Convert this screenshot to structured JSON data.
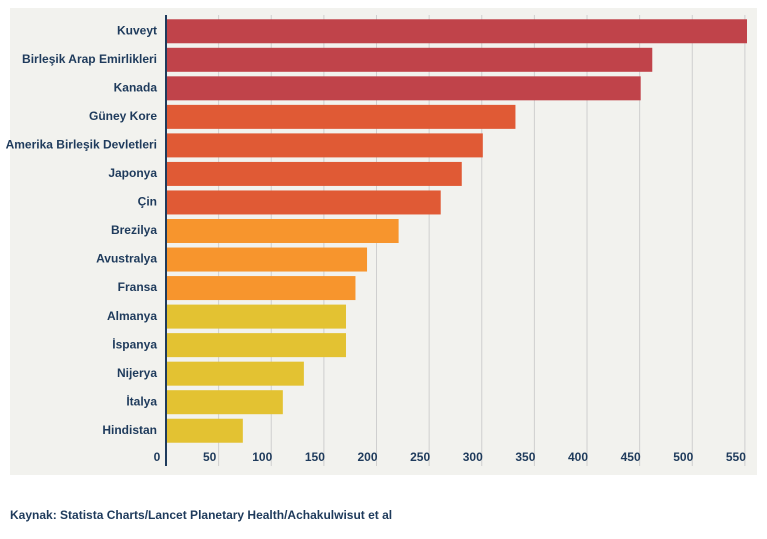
{
  "chart_data": {
    "type": "barh",
    "categories": [
      "Kuveyt",
      "Birleşik Arap Emirlikleri",
      "Kanada",
      "Güney Kore",
      "Amerika Birleşik Devletleri",
      "Japonya",
      "Çin",
      "Brezilya",
      "Avustralya",
      "Fransa",
      "Almanya",
      "İspanya",
      "Nijerya",
      "İtalya",
      "Hindistan"
    ],
    "values": [
      552,
      462,
      451,
      332,
      301,
      281,
      261,
      221,
      191,
      180,
      171,
      171,
      131,
      111,
      73
    ],
    "colors": [
      "#c0434a",
      "#c0434a",
      "#c0434a",
      "#e05a35",
      "#e05a35",
      "#e05a35",
      "#e05a35",
      "#f7952d",
      "#f7952d",
      "#f7952d",
      "#e3c232",
      "#e3c232",
      "#e3c232",
      "#e3c232",
      "#e3c232"
    ],
    "xlim": [
      0,
      552
    ],
    "xticks": [
      0,
      50,
      100,
      150,
      200,
      250,
      300,
      350,
      400,
      450,
      500,
      550
    ],
    "grid": true,
    "source": "Kaynak: Statista Charts/Lancet Planetary Health/Achakulwisut et al"
  }
}
